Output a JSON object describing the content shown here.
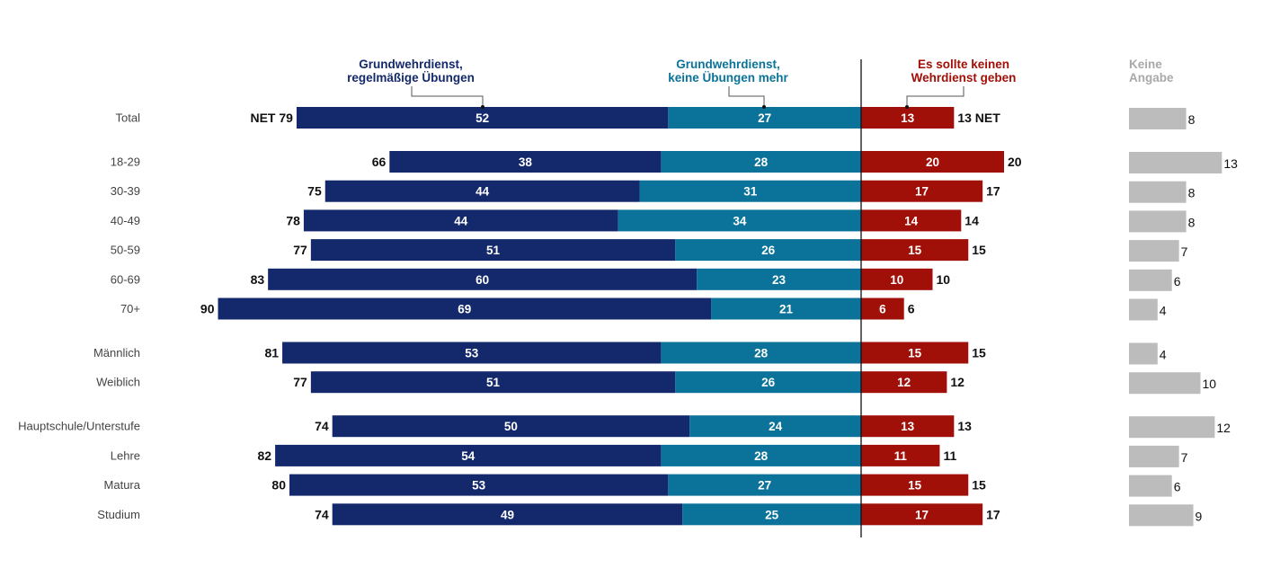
{
  "chart_data": {
    "type": "bar",
    "subtype": "diverging-stacked-horizontal",
    "series": [
      {
        "name": "Grundwehrdienst, regelmäßige Übungen",
        "color": "#14296b",
        "side": "left"
      },
      {
        "name": "Grundwehrdienst, keine Übungen mehr",
        "color": "#0b7399",
        "side": "left"
      },
      {
        "name": "Es sollte keinen Wehrdienst geben",
        "color": "#a11008",
        "side": "right"
      },
      {
        "name": "Keine Angabe",
        "color": "#bcbcbd",
        "side": "separate"
      }
    ],
    "header_colors": [
      "#14296b",
      "#0b7399",
      "#a11008",
      "#a9a9a9"
    ],
    "headers": {
      "s1_line1": "Grundwehrdienst,",
      "s1_line2": "regelmäßige Übungen",
      "s2_line1": "Grundwehrdienst,",
      "s2_line2": "keine Übungen mehr",
      "s3_line1": "Es sollte keinen",
      "s3_line2": "Wehrdienst geben",
      "s4_line1": "Keine",
      "s4_line2": "Angabe"
    },
    "rows": [
      {
        "label": "Total",
        "group": 0,
        "values": [
          52,
          27,
          13,
          8
        ],
        "net_left": "NET 79",
        "net_right": "13 NET"
      },
      {
        "label": "18-29",
        "group": 1,
        "values": [
          38,
          28,
          20,
          13
        ],
        "net_left": "66",
        "net_right": "20"
      },
      {
        "label": "30-39",
        "group": 1,
        "values": [
          44,
          31,
          17,
          8
        ],
        "net_left": "75",
        "net_right": "17"
      },
      {
        "label": "40-49",
        "group": 1,
        "values": [
          44,
          34,
          14,
          8
        ],
        "net_left": "78",
        "net_right": "14"
      },
      {
        "label": "50-59",
        "group": 1,
        "values": [
          51,
          26,
          15,
          7
        ],
        "net_left": "77",
        "net_right": "15"
      },
      {
        "label": "60-69",
        "group": 1,
        "values": [
          60,
          23,
          10,
          6
        ],
        "net_left": "83",
        "net_right": "10"
      },
      {
        "label": "70+",
        "group": 1,
        "values": [
          69,
          21,
          6,
          4
        ],
        "net_left": "90",
        "net_right": "6"
      },
      {
        "label": "Männlich",
        "group": 2,
        "values": [
          53,
          28,
          15,
          4
        ],
        "net_left": "81",
        "net_right": "15"
      },
      {
        "label": "Weiblich",
        "group": 2,
        "values": [
          51,
          26,
          12,
          10
        ],
        "net_left": "77",
        "net_right": "12"
      },
      {
        "label": "Hauptschule/Unterstufe",
        "group": 3,
        "values": [
          50,
          24,
          13,
          12
        ],
        "net_left": "74",
        "net_right": "13"
      },
      {
        "label": "Lehre",
        "group": 3,
        "values": [
          54,
          28,
          11,
          7
        ],
        "net_left": "82",
        "net_right": "11"
      },
      {
        "label": "Matura",
        "group": 3,
        "values": [
          53,
          27,
          15,
          6
        ],
        "net_left": "80",
        "net_right": "15"
      },
      {
        "label": "Studium",
        "group": 3,
        "values": [
          49,
          25,
          17,
          9
        ],
        "net_left": "74",
        "net_right": "17"
      }
    ]
  }
}
